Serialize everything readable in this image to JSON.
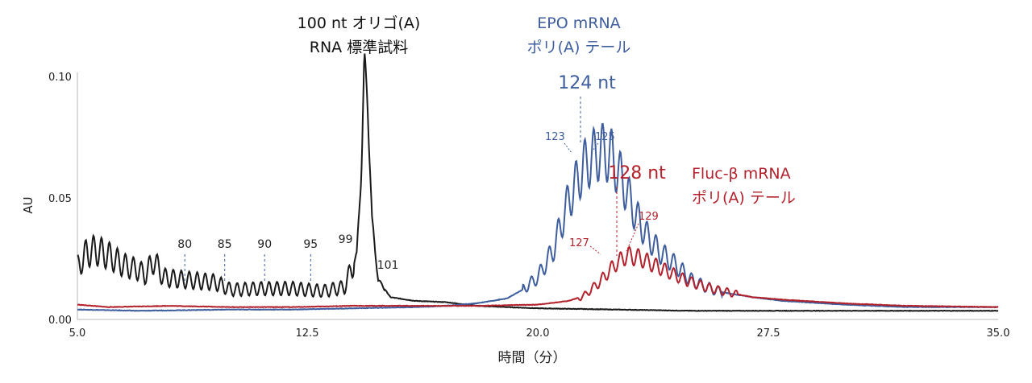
{
  "chart_data": {
    "type": "line",
    "xlabel": "時間（分）",
    "ylabel": "AU",
    "xlim": [
      5.0,
      35.0
    ],
    "ylim": [
      0.0,
      0.1
    ],
    "xticks": [
      5.0,
      12.5,
      20.0,
      27.5,
      35.0
    ],
    "xtick_labels": [
      "5.0",
      "12.5",
      "20.0",
      "27.5",
      "35.0"
    ],
    "yticks": [
      0.0,
      0.05,
      0.1
    ],
    "ytick_labels": [
      "0.00",
      "0.05",
      "0.10"
    ],
    "series": [
      {
        "name": "100 nt オリゴ(A) RNA 標準試料",
        "color": "#1a1a1a",
        "points": [
          [
            5.0,
            0.021
          ],
          [
            5.3,
            0.027
          ],
          [
            5.6,
            0.028
          ],
          [
            6.0,
            0.026
          ],
          [
            6.5,
            0.022
          ],
          [
            7.0,
            0.02
          ],
          [
            7.2,
            0.018
          ],
          [
            7.5,
            0.024
          ],
          [
            7.8,
            0.017
          ],
          [
            8.5,
            0.016
          ],
          [
            9.5,
            0.015
          ],
          [
            10.0,
            0.012
          ],
          [
            11.0,
            0.0125
          ],
          [
            12.0,
            0.0125
          ],
          [
            13.0,
            0.0115
          ],
          [
            13.7,
            0.013
          ],
          [
            14.1,
            0.026
          ],
          [
            14.25,
            0.06
          ],
          [
            14.35,
            0.104
          ],
          [
            14.45,
            0.09
          ],
          [
            14.6,
            0.04
          ],
          [
            14.8,
            0.016
          ],
          [
            15.2,
            0.009
          ],
          [
            16.0,
            0.0075
          ],
          [
            17.0,
            0.007
          ],
          [
            18.0,
            0.0055
          ],
          [
            20.0,
            0.0045
          ],
          [
            25.0,
            0.0035
          ],
          [
            35.0,
            0.0035
          ]
        ]
      },
      {
        "name": "EPO mRNA ポリ(A) テール",
        "color": "#3f5e9e",
        "points": [
          [
            5.0,
            0.004
          ],
          [
            7.0,
            0.0035
          ],
          [
            10.0,
            0.004
          ],
          [
            12.0,
            0.004
          ],
          [
            14.0,
            0.0045
          ],
          [
            16.0,
            0.005
          ],
          [
            17.0,
            0.0055
          ],
          [
            18.0,
            0.0065
          ],
          [
            19.0,
            0.0085
          ],
          [
            19.5,
            0.012
          ],
          [
            20.0,
            0.017
          ],
          [
            20.5,
            0.028
          ],
          [
            21.0,
            0.048
          ],
          [
            21.5,
            0.062
          ],
          [
            21.9,
            0.067
          ],
          [
            22.1,
            0.068
          ],
          [
            22.4,
            0.066
          ],
          [
            22.8,
            0.055
          ],
          [
            23.2,
            0.042
          ],
          [
            23.6,
            0.033
          ],
          [
            24.0,
            0.027
          ],
          [
            24.5,
            0.022
          ],
          [
            25.0,
            0.016
          ],
          [
            25.5,
            0.013
          ],
          [
            26.0,
            0.011
          ],
          [
            27.0,
            0.009
          ],
          [
            28.0,
            0.0075
          ],
          [
            30.0,
            0.006
          ],
          [
            32.0,
            0.005
          ],
          [
            35.0,
            0.005
          ]
        ]
      },
      {
        "name": "Fluc-β mRNA ポリ(A) テール",
        "color": "#b3222c",
        "points": [
          [
            5.0,
            0.006
          ],
          [
            6.0,
            0.005
          ],
          [
            8.0,
            0.0055
          ],
          [
            10.0,
            0.005
          ],
          [
            12.0,
            0.005
          ],
          [
            14.0,
            0.0055
          ],
          [
            16.0,
            0.0055
          ],
          [
            18.0,
            0.0055
          ],
          [
            20.0,
            0.006
          ],
          [
            21.0,
            0.0075
          ],
          [
            21.5,
            0.0095
          ],
          [
            22.0,
            0.015
          ],
          [
            22.5,
            0.022
          ],
          [
            22.9,
            0.026
          ],
          [
            23.3,
            0.025
          ],
          [
            23.8,
            0.022
          ],
          [
            24.3,
            0.019
          ],
          [
            24.8,
            0.016
          ],
          [
            25.5,
            0.013
          ],
          [
            26.0,
            0.0115
          ],
          [
            27.0,
            0.009
          ],
          [
            28.0,
            0.008
          ],
          [
            30.0,
            0.0065
          ],
          [
            32.0,
            0.0055
          ],
          [
            35.0,
            0.005
          ]
        ]
      }
    ],
    "annotations": {
      "standard_title_line1": "100 nt オリゴ(A)",
      "standard_title_line2": "RNA 標準試料",
      "epo_title_line1": "EPO mRNA",
      "epo_title_line2": "ポリ(A) テール",
      "epo_peak": "124 nt",
      "epo_left": "123",
      "epo_right": "125",
      "fluc_title_line1": "Fluc-β mRNA",
      "fluc_title_line2": "ポリ(A) テール",
      "fluc_peak": "128 nt",
      "fluc_left": "127",
      "fluc_right": "129",
      "ladder": [
        {
          "label": "80",
          "x": 8.5
        },
        {
          "label": "85",
          "x": 9.8
        },
        {
          "label": "90",
          "x": 11.1
        },
        {
          "label": "95",
          "x": 12.6
        },
        {
          "label": "99",
          "x": 14.0
        },
        {
          "label": "101",
          "x": 14.8
        }
      ]
    }
  }
}
